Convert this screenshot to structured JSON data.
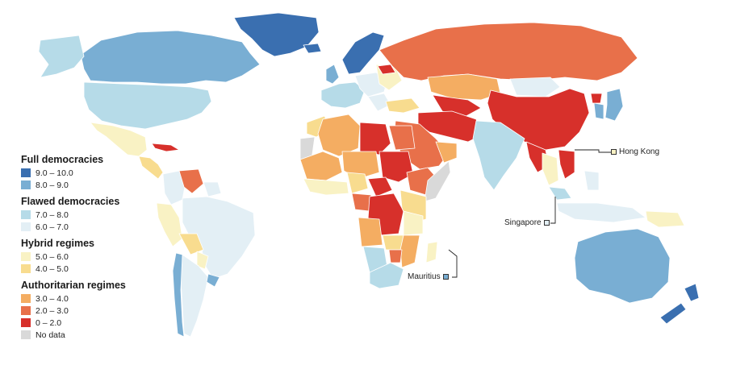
{
  "legend": {
    "groups": [
      {
        "title": "Full democracies",
        "items": [
          {
            "label": "9.0 – 10.0",
            "color": "#3a6fb0"
          },
          {
            "label": "8.0 – 9.0",
            "color": "#79aed3"
          }
        ]
      },
      {
        "title": "Flawed democracies",
        "items": [
          {
            "label": "7.0 – 8.0",
            "color": "#b6dbe8"
          },
          {
            "label": "6.0 – 7.0",
            "color": "#e3eff5"
          }
        ]
      },
      {
        "title": "Hybrid regimes",
        "items": [
          {
            "label": "5.0 – 6.0",
            "color": "#f9f2c4"
          },
          {
            "label": "4.0 – 5.0",
            "color": "#f8dc8f"
          }
        ]
      },
      {
        "title": "Authoritarian regimes",
        "items": [
          {
            "label": "3.0 – 4.0",
            "color": "#f4ad62"
          },
          {
            "label": "2.0 – 3.0",
            "color": "#e8704a"
          },
          {
            "label": "0 – 2.0",
            "color": "#d7302b"
          }
        ]
      }
    ],
    "no_data": {
      "label": "No data",
      "color": "#d9d9d9"
    }
  },
  "callouts": {
    "hong_kong": {
      "label": "Hong Kong",
      "color": "#f9f2c4"
    },
    "singapore": {
      "label": "Singapore",
      "color": "#e3eff5"
    },
    "mauritius": {
      "label": "Mauritius",
      "color": "#79aed3"
    }
  }
}
